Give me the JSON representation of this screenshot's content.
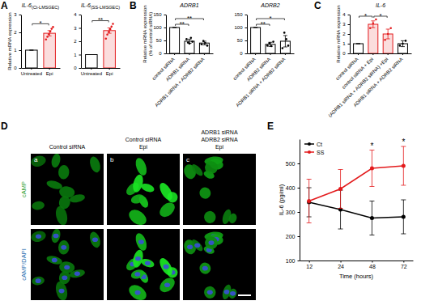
{
  "panel_labels": [
    "A",
    "B",
    "C",
    "D",
    "E"
  ],
  "chart_data": [
    {
      "type": "bar",
      "title": "IL-6",
      "subtitle": "(Ct-LMSGEC)",
      "ylabel": [
        "Relative mRNA expression"
      ],
      "categories": [
        "Untreated",
        "Epi"
      ],
      "values": [
        1,
        1.95
      ],
      "errors": [
        0,
        0.15
      ],
      "points": [
        [],
        [
          1.6,
          1.75,
          1.9,
          2.05,
          2.2,
          2.3
        ]
      ],
      "colors": [
        "#000000",
        "#e31a1c"
      ],
      "ylim": [
        0,
        3
      ],
      "yticks": [
        0,
        1,
        2,
        3
      ],
      "annotations": [
        {
          "text": "*",
          "from": 0,
          "to": 1
        }
      ]
    },
    {
      "type": "bar",
      "title": "IL-6",
      "subtitle": "(SS-LMSGEC)",
      "categories": [
        "Untreated",
        "Epi"
      ],
      "values": [
        1,
        2.8
      ],
      "errors": [
        0,
        0.2
      ],
      "points": [
        [],
        [
          2.2,
          2.5,
          2.7,
          2.9,
          3.1,
          3.3
        ]
      ],
      "colors": [
        "#000000",
        "#e31a1c"
      ],
      "ylim": [
        0,
        4
      ],
      "yticks": [
        0,
        1,
        2,
        3,
        4
      ],
      "annotations": [
        {
          "text": "**",
          "from": 0,
          "to": 1
        }
      ]
    },
    {
      "type": "bar",
      "title": "ADRB1",
      "ylabel": [
        "Relative mRNA expression",
        "(% of control siRNA)"
      ],
      "categories": [
        "control siRNA",
        "ADRB1 siRNA",
        "ADRB1 siRNA + ADRB2 siRNA"
      ],
      "values": [
        100,
        47,
        40
      ],
      "errors": [
        0,
        8,
        7
      ],
      "points": [
        [],
        [
          55,
          42,
          38,
          60,
          45
        ],
        [
          35,
          48,
          40,
          30
        ]
      ],
      "colors": [
        "#000000",
        "#000000",
        "#000000"
      ],
      "ylim": [
        0,
        150
      ],
      "yticks": [
        0,
        50,
        100,
        150
      ],
      "annotations": [
        {
          "text": "**",
          "from": 0,
          "to": 1
        },
        {
          "text": "**",
          "from": 0,
          "to": 2
        }
      ]
    },
    {
      "type": "bar",
      "title": "ADRB2",
      "categories": [
        "control siRNA",
        "ADRB2 siRNA",
        "ADRB1 siRNA + ADRB2 siRNA"
      ],
      "values": [
        100,
        35,
        47
      ],
      "errors": [
        0,
        8,
        22
      ],
      "points": [
        [],
        [
          30,
          40,
          28,
          45
        ],
        [
          20,
          80,
          55,
          30
        ]
      ],
      "colors": [
        "#000000",
        "#000000",
        "#000000"
      ],
      "ylim": [
        0,
        150
      ],
      "yticks": [
        0,
        50,
        100,
        150
      ],
      "annotations": [
        {
          "text": "**",
          "from": 0,
          "to": 1
        },
        {
          "text": "*",
          "from": 0,
          "to": 2
        }
      ]
    },
    {
      "type": "bar",
      "title": "IL-6",
      "ylabel": [
        "Relative mRNA expression"
      ],
      "categories": [
        "control siRNA",
        "control siRNA + Epi",
        "(ADRB1 siRNA + ADRB2 siRNA) +Epi",
        "ADRB1 siRNA + ADRB2 siRNA"
      ],
      "values": [
        1,
        3.0,
        2.0,
        1.0
      ],
      "errors": [
        0,
        0.35,
        0.5,
        0.3
      ],
      "points": [
        [],
        [
          2.6,
          3.1,
          3.5
        ],
        [
          1.4,
          2.0,
          2.6
        ],
        [
          0.8,
          1.0,
          1.3
        ]
      ],
      "colors": [
        "#000000",
        "#e31a1c",
        "#e31a1c",
        "#000000"
      ],
      "ylim": [
        0,
        4
      ],
      "yticks": [
        0,
        1,
        2,
        3,
        4
      ],
      "annotations": [
        {
          "text": "*",
          "from": 0,
          "to": 1
        },
        {
          "text": "*",
          "from": 1,
          "to": 2
        }
      ]
    },
    {
      "type": "line",
      "ylabel": [
        "IL-6 (pg/ml)"
      ],
      "xlabel": "Time (hours)",
      "categories": [
        "12",
        "24",
        "48",
        "72"
      ],
      "series": [
        {
          "name": "Ct",
          "color": "#000000",
          "values": [
            340,
            310,
            275,
            280
          ],
          "errors": [
            60,
            80,
            70,
            70
          ]
        },
        {
          "name": "SS",
          "color": "#e31a1c",
          "values": [
            345,
            395,
            480,
            490
          ],
          "errors": [
            90,
            80,
            75,
            80
          ]
        }
      ],
      "ylim": [
        100,
        600
      ],
      "yticks": [
        100,
        200,
        300,
        400,
        500
      ],
      "legend": "upper left",
      "annotations": [
        {
          "text": "*",
          "at": 2
        },
        {
          "text": "*",
          "at": 3
        }
      ]
    }
  ],
  "image_panel": {
    "columns": [
      {
        "label": [
          "Control siRNA"
        ],
        "tag": "a"
      },
      {
        "label": [
          "Control siRNA",
          "Epi"
        ],
        "tag": "b"
      },
      {
        "label": [
          "ADRB1 siRNA",
          "ADRB2 siRNA",
          "Epi"
        ],
        "tag": "c"
      }
    ],
    "rows": [
      "cAMP",
      "cAMP/DAPI"
    ]
  }
}
